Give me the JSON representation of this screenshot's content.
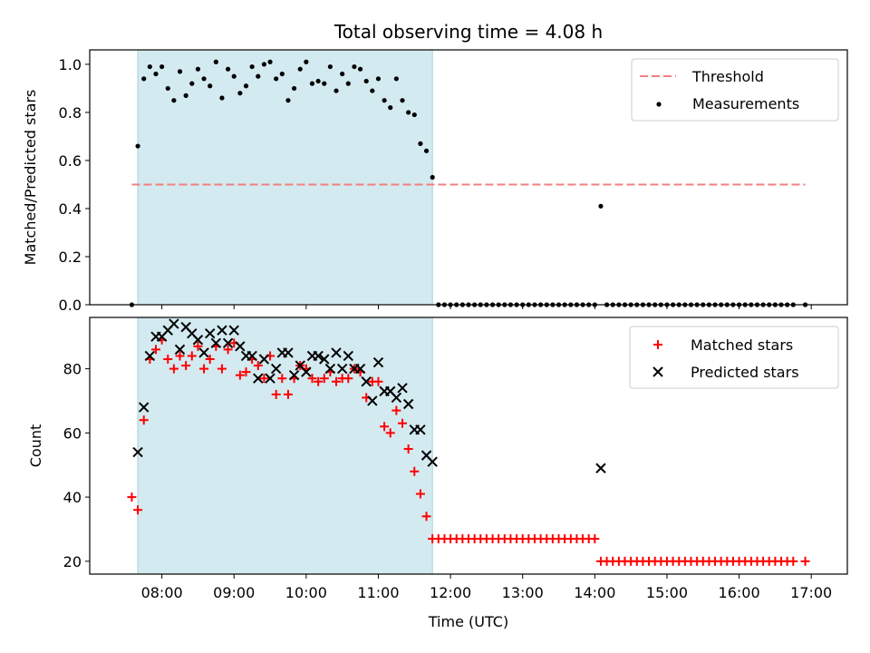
{
  "chart_data": [
    {
      "type": "scatter",
      "title": "Total observing time = 4.08 h",
      "ylabel": "Matched/Predicted stars",
      "xlim": [
        "07:00",
        "17:30"
      ],
      "ylim": [
        0,
        1.06
      ],
      "y_ticks": [
        "0.0",
        "0.2",
        "0.4",
        "0.6",
        "0.8",
        "1.0"
      ],
      "x_tick_labels_visible": false,
      "shaded_span": [
        "07:40",
        "11:45"
      ],
      "shade_color": "#d3eaf0",
      "legend": {
        "placement": "top-right",
        "entries": [
          {
            "label": "Threshold",
            "marker": "dashed-line",
            "color": "#f08080"
          },
          {
            "label": "Measurements",
            "marker": "dot",
            "color": "#000000"
          }
        ]
      },
      "threshold": {
        "name": "Threshold",
        "y": 0.5,
        "x_range": [
          "07:35",
          "16:55"
        ],
        "color": "#f08080"
      },
      "series": [
        {
          "name": "Measurements",
          "marker": "dot",
          "color": "#000000",
          "x": [
            "07:35",
            "07:40",
            "07:45",
            "07:50",
            "07:55",
            "08:00",
            "08:05",
            "08:10",
            "08:15",
            "08:20",
            "08:25",
            "08:30",
            "08:35",
            "08:40",
            "08:45",
            "08:50",
            "08:55",
            "09:00",
            "09:05",
            "09:10",
            "09:15",
            "09:20",
            "09:25",
            "09:30",
            "09:35",
            "09:40",
            "09:45",
            "09:50",
            "09:55",
            "10:00",
            "10:05",
            "10:10",
            "10:15",
            "10:20",
            "10:25",
            "10:30",
            "10:35",
            "10:40",
            "10:45",
            "10:50",
            "10:55",
            "11:00",
            "11:05",
            "11:10",
            "11:15",
            "11:20",
            "11:25",
            "11:30",
            "11:35",
            "11:40",
            "11:45",
            "11:50",
            "11:55",
            "12:00",
            "12:05",
            "12:10",
            "12:15",
            "12:20",
            "12:25",
            "12:30",
            "12:35",
            "12:40",
            "12:45",
            "12:50",
            "12:55",
            "13:00",
            "13:05",
            "13:10",
            "13:15",
            "13:20",
            "13:25",
            "13:30",
            "13:35",
            "13:40",
            "13:45",
            "13:50",
            "13:55",
            "14:00",
            "14:05",
            "14:10",
            "14:15",
            "14:20",
            "14:25",
            "14:30",
            "14:35",
            "14:40",
            "14:45",
            "14:50",
            "14:55",
            "15:00",
            "15:05",
            "15:10",
            "15:15",
            "15:20",
            "15:25",
            "15:30",
            "15:35",
            "15:40",
            "15:45",
            "15:50",
            "15:55",
            "16:00",
            "16:05",
            "16:10",
            "16:15",
            "16:20",
            "16:25",
            "16:30",
            "16:35",
            "16:40",
            "16:45",
            "16:55"
          ],
          "y": [
            0.0,
            0.66,
            0.94,
            0.99,
            0.96,
            0.99,
            0.9,
            0.85,
            0.97,
            0.87,
            0.92,
            0.98,
            0.94,
            0.91,
            1.01,
            0.86,
            0.98,
            0.95,
            0.88,
            0.91,
            0.99,
            0.95,
            1.0,
            1.01,
            0.94,
            0.96,
            0.85,
            0.9,
            0.98,
            1.01,
            0.92,
            0.93,
            0.92,
            0.99,
            0.89,
            0.96,
            0.92,
            0.99,
            0.98,
            0.93,
            0.89,
            0.94,
            0.85,
            0.82,
            0.94,
            0.85,
            0.8,
            0.79,
            0.67,
            0.64,
            0.53,
            0.0,
            0.0,
            0.0,
            0.0,
            0.0,
            0.0,
            0.0,
            0.0,
            0.0,
            0.0,
            0.0,
            0.0,
            0.0,
            0.0,
            0.0,
            0.0,
            0.0,
            0.0,
            0.0,
            0.0,
            0.0,
            0.0,
            0.0,
            0.0,
            0.0,
            0.0,
            0.0,
            0.41,
            0.0,
            0.0,
            0.0,
            0.0,
            0.0,
            0.0,
            0.0,
            0.0,
            0.0,
            0.0,
            0.0,
            0.0,
            0.0,
            0.0,
            0.0,
            0.0,
            0.0,
            0.0,
            0.0,
            0.0,
            0.0,
            0.0,
            0.0,
            0.0,
            0.0,
            0.0,
            0.0,
            0.0,
            0.0,
            0.0,
            0.0,
            0.0,
            0.0
          ]
        }
      ]
    },
    {
      "type": "scatter",
      "xlabel": "Time (UTC)",
      "ylabel": "Count",
      "xlim": [
        "07:00",
        "17:30"
      ],
      "ylim": [
        16,
        96
      ],
      "y_ticks": [
        "20",
        "40",
        "60",
        "80"
      ],
      "x_ticks": [
        "08:00",
        "09:00",
        "10:00",
        "11:00",
        "12:00",
        "13:00",
        "14:00",
        "15:00",
        "16:00",
        "17:00"
      ],
      "shaded_span": [
        "07:40",
        "11:45"
      ],
      "shade_color": "#d3eaf0",
      "legend": {
        "placement": "top-right",
        "entries": [
          {
            "label": "Matched stars",
            "marker": "plus",
            "color": "#ff0000"
          },
          {
            "label": "Predicted stars",
            "marker": "x",
            "color": "#000000"
          }
        ]
      },
      "series": [
        {
          "name": "Matched stars",
          "marker": "plus",
          "color": "#ff0000",
          "x": [
            "07:35",
            "07:40",
            "07:45",
            "07:50",
            "07:55",
            "08:00",
            "08:05",
            "08:10",
            "08:15",
            "08:20",
            "08:25",
            "08:30",
            "08:35",
            "08:40",
            "08:45",
            "08:50",
            "08:55",
            "09:00",
            "09:05",
            "09:10",
            "09:15",
            "09:20",
            "09:25",
            "09:30",
            "09:35",
            "09:40",
            "09:45",
            "09:50",
            "09:55",
            "10:00",
            "10:05",
            "10:10",
            "10:15",
            "10:20",
            "10:25",
            "10:30",
            "10:35",
            "10:40",
            "10:45",
            "10:50",
            "10:55",
            "11:00",
            "11:05",
            "11:10",
            "11:15",
            "11:20",
            "11:25",
            "11:30",
            "11:35",
            "11:40",
            "11:45",
            "11:50",
            "11:55",
            "12:00",
            "12:05",
            "12:10",
            "12:15",
            "12:20",
            "12:25",
            "12:30",
            "12:35",
            "12:40",
            "12:45",
            "12:50",
            "12:55",
            "13:00",
            "13:05",
            "13:10",
            "13:15",
            "13:20",
            "13:25",
            "13:30",
            "13:35",
            "13:40",
            "13:45",
            "13:50",
            "13:55",
            "14:00",
            "14:05",
            "14:10",
            "14:15",
            "14:20",
            "14:25",
            "14:30",
            "14:35",
            "14:40",
            "14:45",
            "14:50",
            "14:55",
            "15:00",
            "15:05",
            "15:10",
            "15:15",
            "15:20",
            "15:25",
            "15:30",
            "15:35",
            "15:40",
            "15:45",
            "15:50",
            "15:55",
            "16:00",
            "16:05",
            "16:10",
            "16:15",
            "16:20",
            "16:25",
            "16:30",
            "16:35",
            "16:40",
            "16:45",
            "16:55"
          ],
          "y": [
            40,
            36,
            64,
            83,
            86,
            89,
            83,
            80,
            84,
            81,
            84,
            87,
            80,
            83,
            87,
            80,
            86,
            88,
            78,
            79,
            83,
            81,
            77,
            84,
            72,
            77,
            72,
            77,
            81,
            80,
            77,
            76,
            77,
            79,
            76,
            77,
            77,
            80,
            79,
            71,
            76,
            76,
            62,
            60,
            67,
            63,
            55,
            48,
            41,
            34,
            27,
            27,
            27,
            27,
            27,
            27,
            27,
            27,
            27,
            27,
            27,
            27,
            27,
            27,
            27,
            27,
            27,
            27,
            27,
            27,
            27,
            27,
            27,
            27,
            27,
            27,
            27,
            27,
            20,
            20,
            20,
            20,
            20,
            20,
            20,
            20,
            20,
            20,
            20,
            20,
            20,
            20,
            20,
            20,
            20,
            20,
            20,
            20,
            20,
            20,
            20,
            20,
            20,
            20,
            20,
            20,
            20,
            20,
            20,
            20,
            20,
            20
          ]
        },
        {
          "name": "Predicted stars",
          "marker": "x",
          "color": "#000000",
          "x": [
            "07:40",
            "07:45",
            "07:50",
            "07:55",
            "08:00",
            "08:05",
            "08:10",
            "08:15",
            "08:20",
            "08:25",
            "08:30",
            "08:35",
            "08:40",
            "08:45",
            "08:50",
            "08:55",
            "09:00",
            "09:05",
            "09:10",
            "09:15",
            "09:20",
            "09:25",
            "09:30",
            "09:35",
            "09:40",
            "09:45",
            "09:50",
            "09:55",
            "10:00",
            "10:05",
            "10:10",
            "10:15",
            "10:20",
            "10:25",
            "10:30",
            "10:35",
            "10:40",
            "10:45",
            "10:50",
            "10:55",
            "11:00",
            "11:05",
            "11:10",
            "11:15",
            "11:20",
            "11:25",
            "11:30",
            "11:35",
            "11:40",
            "11:45",
            "14:05"
          ],
          "y": [
            54,
            68,
            84,
            90,
            90,
            92,
            94,
            86,
            93,
            91,
            89,
            85,
            91,
            88,
            92,
            88,
            92,
            87,
            84,
            84,
            77,
            83,
            77,
            80,
            85,
            85,
            78,
            81,
            79,
            84,
            84,
            83,
            80,
            85,
            80,
            84,
            80,
            80,
            76,
            70,
            82,
            73,
            73,
            71,
            74,
            69,
            61,
            61,
            53,
            51,
            49
          ]
        }
      ]
    }
  ]
}
